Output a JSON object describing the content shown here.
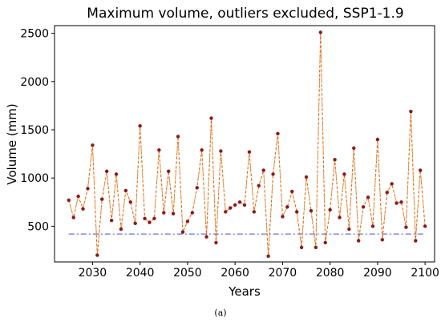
{
  "chart_data": {
    "type": "line",
    "title": "Maximum volume, outliers excluded, SSP1-1.9",
    "xlabel": "Years",
    "ylabel": "Volume (mm)",
    "xlim": [
      2022,
      2102
    ],
    "ylim": [
      130,
      2580
    ],
    "xticks": [
      2030,
      2040,
      2050,
      2060,
      2070,
      2080,
      2090,
      2100
    ],
    "yticks": [
      500,
      1000,
      1500,
      2000,
      2500
    ],
    "grid": false,
    "legend": "none",
    "caption": "(a)",
    "colors": {
      "series_line": "#e8a13a",
      "series_dash": "#d0342c",
      "marker": "#8b1a1a",
      "threshold": "#3a4fd0"
    },
    "series": [
      {
        "x": [
          2025,
          2026,
          2027,
          2028,
          2029,
          2030,
          2031,
          2032,
          2033,
          2034,
          2035,
          2036,
          2037,
          2038,
          2039,
          2040,
          2041,
          2042,
          2043,
          2044,
          2045,
          2046,
          2047,
          2048,
          2049,
          2050,
          2051,
          2052,
          2053,
          2054,
          2055,
          2056,
          2057,
          2058,
          2059,
          2060,
          2061,
          2062,
          2063,
          2064,
          2065,
          2066,
          2067,
          2068,
          2069,
          2070,
          2071,
          2072,
          2073,
          2074,
          2075,
          2076,
          2077,
          2078,
          2079,
          2080,
          2081,
          2082,
          2083,
          2084,
          2085,
          2086,
          2087,
          2088,
          2089,
          2090,
          2091,
          2092,
          2093,
          2094,
          2095,
          2096,
          2097,
          2098,
          2099,
          2100
        ],
        "values": [
          770,
          590,
          810,
          680,
          890,
          1340,
          200,
          780,
          1070,
          560,
          1040,
          470,
          870,
          750,
          530,
          1540,
          580,
          540,
          580,
          1290,
          640,
          1070,
          630,
          1430,
          440,
          550,
          640,
          900,
          1290,
          390,
          1620,
          330,
          1280,
          650,
          690,
          720,
          750,
          720,
          1270,
          650,
          920,
          1080,
          190,
          1040,
          1460,
          600,
          700,
          860,
          650,
          280,
          1010,
          660,
          280,
          2510,
          330,
          670,
          1190,
          590,
          1040,
          470,
          1310,
          350,
          700,
          800,
          500,
          1400,
          360,
          850,
          940,
          740,
          750,
          490,
          1690,
          350,
          1080,
          500
        ]
      }
    ],
    "threshold": 420
  }
}
